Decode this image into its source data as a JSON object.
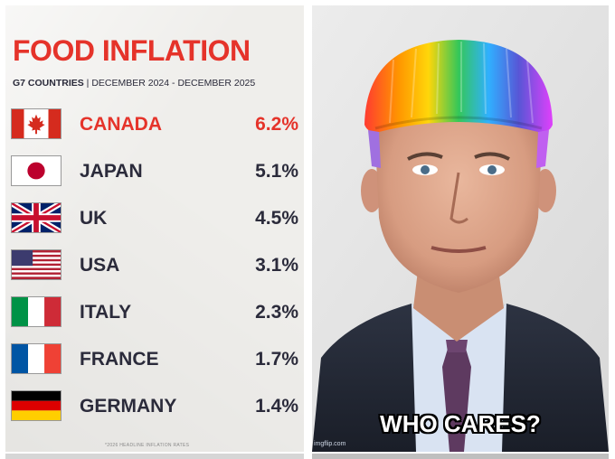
{
  "left_panel": {
    "title": "FOOD INFLATION",
    "subtitle_bold": "G7 COUNTRIES",
    "subtitle_rest": " | DECEMBER 2024 - DECEMBER 2025",
    "rows": [
      {
        "country": "CANADA",
        "value": "6.2%",
        "flag": "canada-flag-icon",
        "highlight": true
      },
      {
        "country": "JAPAN",
        "value": "5.1%",
        "flag": "japan-flag-icon",
        "highlight": false
      },
      {
        "country": "UK",
        "value": "4.5%",
        "flag": "uk-flag-icon",
        "highlight": false
      },
      {
        "country": "USA",
        "value": "3.1%",
        "flag": "usa-flag-icon",
        "highlight": false
      },
      {
        "country": "ITALY",
        "value": "2.3%",
        "flag": "italy-flag-icon",
        "highlight": false
      },
      {
        "country": "FRANCE",
        "value": "1.7%",
        "flag": "france-flag-icon",
        "highlight": false
      },
      {
        "country": "GERMANY",
        "value": "1.4%",
        "flag": "germany-flag-icon",
        "highlight": false
      }
    ],
    "footnote": "*2026 HEADLINE INFLATION RATES",
    "colors": {
      "accent": "#e5332a",
      "text": "#2b2b3b",
      "background": "#efeeeb"
    }
  },
  "right_panel": {
    "caption": "WHO CARES?",
    "watermark": "imgflip.com",
    "image_subject": "man-portrait-rainbow-hair"
  }
}
